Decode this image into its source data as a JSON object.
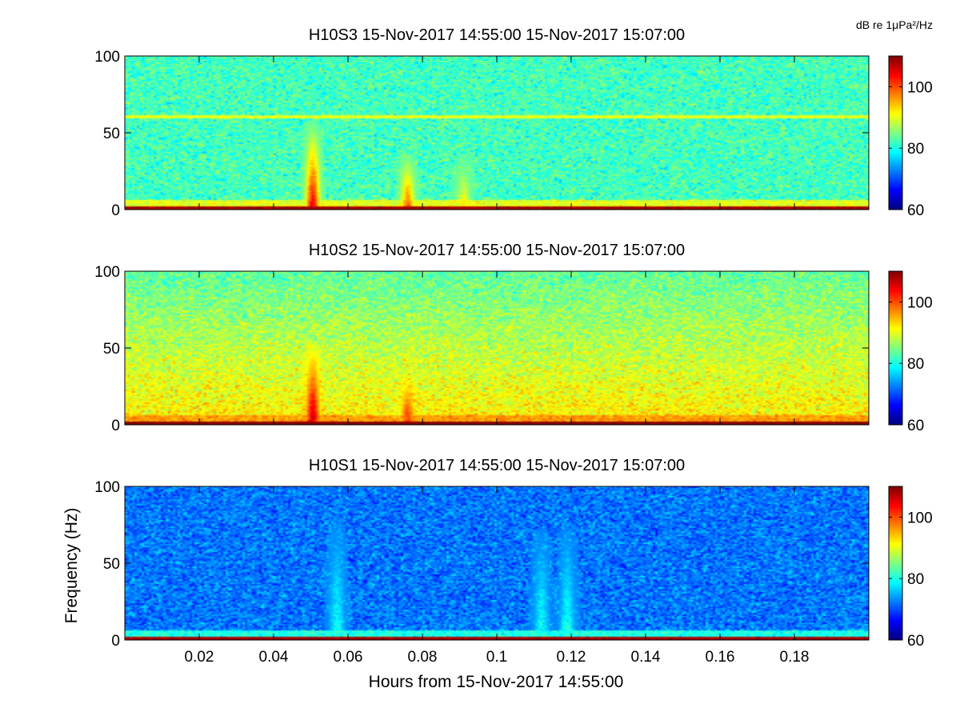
{
  "figure": {
    "colorbar_unit": "dB re 1μPa²/Hz",
    "xlabel": "Hours from 15-Nov-2017 14:55:00",
    "ylabel": "Frequency (Hz)"
  },
  "chart_data": [
    {
      "type": "heatmap",
      "title": "H10S3 15-Nov-2017 14:55:00 15-Nov-2017 15:07:00",
      "xlabel": "",
      "ylabel": "",
      "xlim": [
        0,
        0.2
      ],
      "ylim": [
        0,
        100
      ],
      "yticks": [
        0,
        50,
        100
      ],
      "xticks": [
        0.02,
        0.04,
        0.06,
        0.08,
        0.1,
        0.12,
        0.14,
        0.16,
        0.18
      ],
      "xtick_labels": [],
      "clim": [
        60,
        110
      ],
      "cticks": [
        60,
        80,
        100
      ],
      "colormap": "jet",
      "background_db": 82,
      "low_freq_band_db": 108,
      "tone_lines": [
        {
          "freq_hz": 60,
          "db": 90
        }
      ],
      "events": [
        {
          "t_hours": 0.0505,
          "fmax_hz": 60,
          "peak_db": 106
        },
        {
          "t_hours": 0.076,
          "fmax_hz": 38,
          "peak_db": 100
        },
        {
          "t_hours": 0.091,
          "fmax_hz": 35,
          "peak_db": 92
        }
      ]
    },
    {
      "type": "heatmap",
      "title": "H10S2 15-Nov-2017 14:55:00 15-Nov-2017 15:07:00",
      "xlabel": "",
      "ylabel": "",
      "xlim": [
        0,
        0.2
      ],
      "ylim": [
        0,
        100
      ],
      "yticks": [
        0,
        50,
        100
      ],
      "xticks": [
        0.02,
        0.04,
        0.06,
        0.08,
        0.1,
        0.12,
        0.14,
        0.16,
        0.18
      ],
      "xtick_labels": [],
      "clim": [
        60,
        110
      ],
      "cticks": [
        60,
        80,
        100
      ],
      "colormap": "jet",
      "background_db": 88,
      "low_freq_band_db": 110,
      "tone_lines": [],
      "events": [
        {
          "t_hours": 0.0505,
          "fmax_hz": 55,
          "peak_db": 108
        },
        {
          "t_hours": 0.076,
          "fmax_hz": 35,
          "peak_db": 103
        }
      ]
    },
    {
      "type": "heatmap",
      "title": "H10S1 15-Nov-2017 14:55:00 15-Nov-2017 15:07:00",
      "xlabel": "Hours from 15-Nov-2017 14:55:00",
      "ylabel": "Frequency (Hz)",
      "xlim": [
        0,
        0.2
      ],
      "ylim": [
        0,
        100
      ],
      "yticks": [
        0,
        50,
        100
      ],
      "xticks": [
        0.02,
        0.04,
        0.06,
        0.08,
        0.1,
        0.12,
        0.14,
        0.16,
        0.18
      ],
      "xtick_labels": [
        "0.02",
        "0.04",
        "0.06",
        "0.08",
        "0.1",
        "0.12",
        "0.14",
        "0.16",
        "0.18"
      ],
      "clim": [
        60,
        110
      ],
      "cticks": [
        60,
        80,
        100
      ],
      "colormap": "jet",
      "background_db": 72,
      "low_freq_band_db": 108,
      "tone_lines": [],
      "events": [
        {
          "t_hours": 0.057,
          "fmax_hz": 80,
          "peak_db": 80
        },
        {
          "t_hours": 0.112,
          "fmax_hz": 75,
          "peak_db": 80
        },
        {
          "t_hours": 0.119,
          "fmax_hz": 75,
          "peak_db": 81
        }
      ]
    }
  ]
}
